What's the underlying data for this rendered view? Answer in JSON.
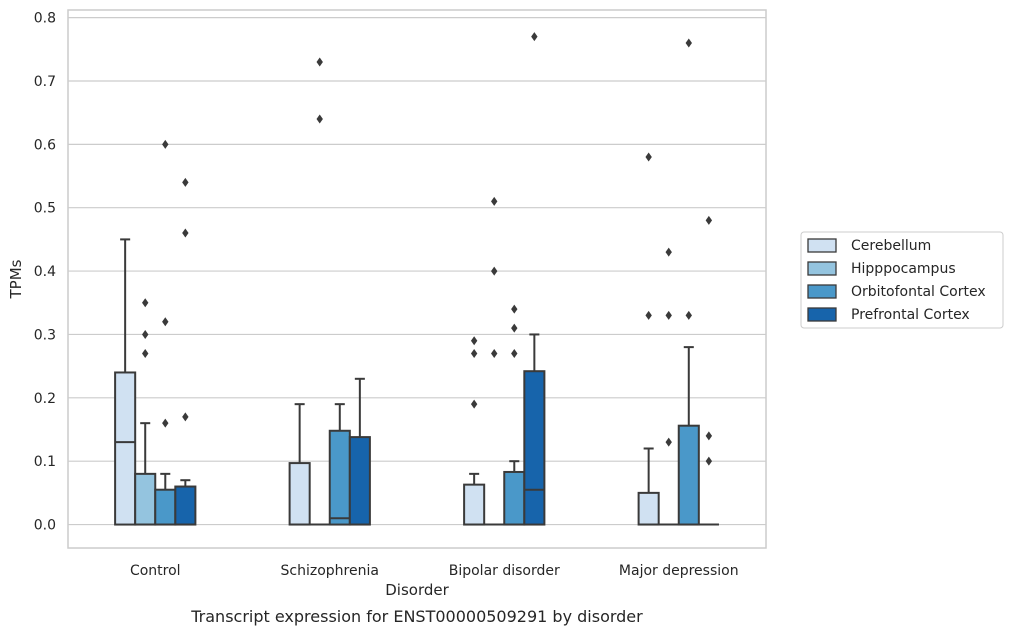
{
  "caption": "Transcript expression for ENST00000509291 by disorder",
  "chart_data": {
    "type": "box",
    "xlabel": "Disorder",
    "ylabel": "TPMs",
    "ylim": [
      -0.037,
      0.812
    ],
    "y_ticks": [
      0.0,
      0.1,
      0.2,
      0.3,
      0.4,
      0.5,
      0.6,
      0.7,
      0.8
    ],
    "y_tick_labels": [
      "0.0",
      "0.1",
      "0.2",
      "0.3",
      "0.4",
      "0.5",
      "0.6",
      "0.7",
      "0.8"
    ],
    "categories": [
      "Control",
      "Schizophrenia",
      "Bipolar disorder",
      "Major depression"
    ],
    "grid": true,
    "legend_position": "right",
    "series": [
      {
        "name": "Cerebellum",
        "color": "#d0e1f2",
        "boxes": [
          {
            "q1": 0.0,
            "median": 0.13,
            "q3": 0.24,
            "whisker_low": 0.0,
            "whisker_high": 0.45,
            "outliers": []
          },
          {
            "q1": 0.0,
            "median": 0.0,
            "q3": 0.097,
            "whisker_low": 0.0,
            "whisker_high": 0.19,
            "outliers": []
          },
          {
            "q1": 0.0,
            "median": 0.0,
            "q3": 0.063,
            "whisker_low": 0.0,
            "whisker_high": 0.08,
            "outliers": [
              0.19,
              0.27,
              0.29
            ]
          },
          {
            "q1": 0.0,
            "median": 0.0,
            "q3": 0.05,
            "whisker_low": 0.0,
            "whisker_high": 0.12,
            "outliers": [
              0.33,
              0.58
            ]
          }
        ]
      },
      {
        "name": "Hipppocampus",
        "color": "#94c4df",
        "boxes": [
          {
            "q1": 0.0,
            "median": 0.0,
            "q3": 0.08,
            "whisker_low": 0.0,
            "whisker_high": 0.16,
            "outliers": [
              0.27,
              0.3,
              0.35
            ]
          },
          {
            "q1": 0.0,
            "median": 0.0,
            "q3": 0.0,
            "whisker_low": 0.0,
            "whisker_high": 0.0,
            "outliers": [
              0.64,
              0.73
            ]
          },
          {
            "q1": 0.0,
            "median": 0.0,
            "q3": 0.0,
            "whisker_low": 0.0,
            "whisker_high": 0.0,
            "outliers": [
              0.27,
              0.4,
              0.51
            ]
          },
          {
            "q1": 0.0,
            "median": 0.0,
            "q3": 0.0,
            "whisker_low": 0.0,
            "whisker_high": 0.0,
            "outliers": [
              0.13,
              0.33,
              0.43
            ]
          }
        ]
      },
      {
        "name": "Orbitofontal Cortex",
        "color": "#4a98c9",
        "boxes": [
          {
            "q1": 0.0,
            "median": 0.0,
            "q3": 0.055,
            "whisker_low": 0.0,
            "whisker_high": 0.08,
            "outliers": [
              0.16,
              0.32,
              0.6
            ]
          },
          {
            "q1": 0.0,
            "median": 0.01,
            "q3": 0.148,
            "whisker_low": 0.0,
            "whisker_high": 0.19,
            "outliers": []
          },
          {
            "q1": 0.0,
            "median": 0.0,
            "q3": 0.083,
            "whisker_low": 0.0,
            "whisker_high": 0.1,
            "outliers": [
              0.27,
              0.31,
              0.34
            ]
          },
          {
            "q1": 0.0,
            "median": 0.0,
            "q3": 0.156,
            "whisker_low": 0.0,
            "whisker_high": 0.28,
            "outliers": [
              0.33,
              0.76
            ]
          }
        ]
      },
      {
        "name": "Prefrontal Cortex",
        "color": "#1764ab",
        "boxes": [
          {
            "q1": 0.0,
            "median": 0.0,
            "q3": 0.06,
            "whisker_low": 0.0,
            "whisker_high": 0.07,
            "outliers": [
              0.17,
              0.46,
              0.54
            ]
          },
          {
            "q1": 0.0,
            "median": 0.0,
            "q3": 0.138,
            "whisker_low": 0.0,
            "whisker_high": 0.23,
            "outliers": []
          },
          {
            "q1": 0.0,
            "median": 0.055,
            "q3": 0.242,
            "whisker_low": 0.0,
            "whisker_high": 0.3,
            "outliers": [
              0.77
            ]
          },
          {
            "q1": 0.0,
            "median": 0.0,
            "q3": 0.0,
            "whisker_low": 0.0,
            "whisker_high": 0.0,
            "outliers": [
              0.1,
              0.14,
              0.48
            ]
          }
        ]
      }
    ]
  }
}
